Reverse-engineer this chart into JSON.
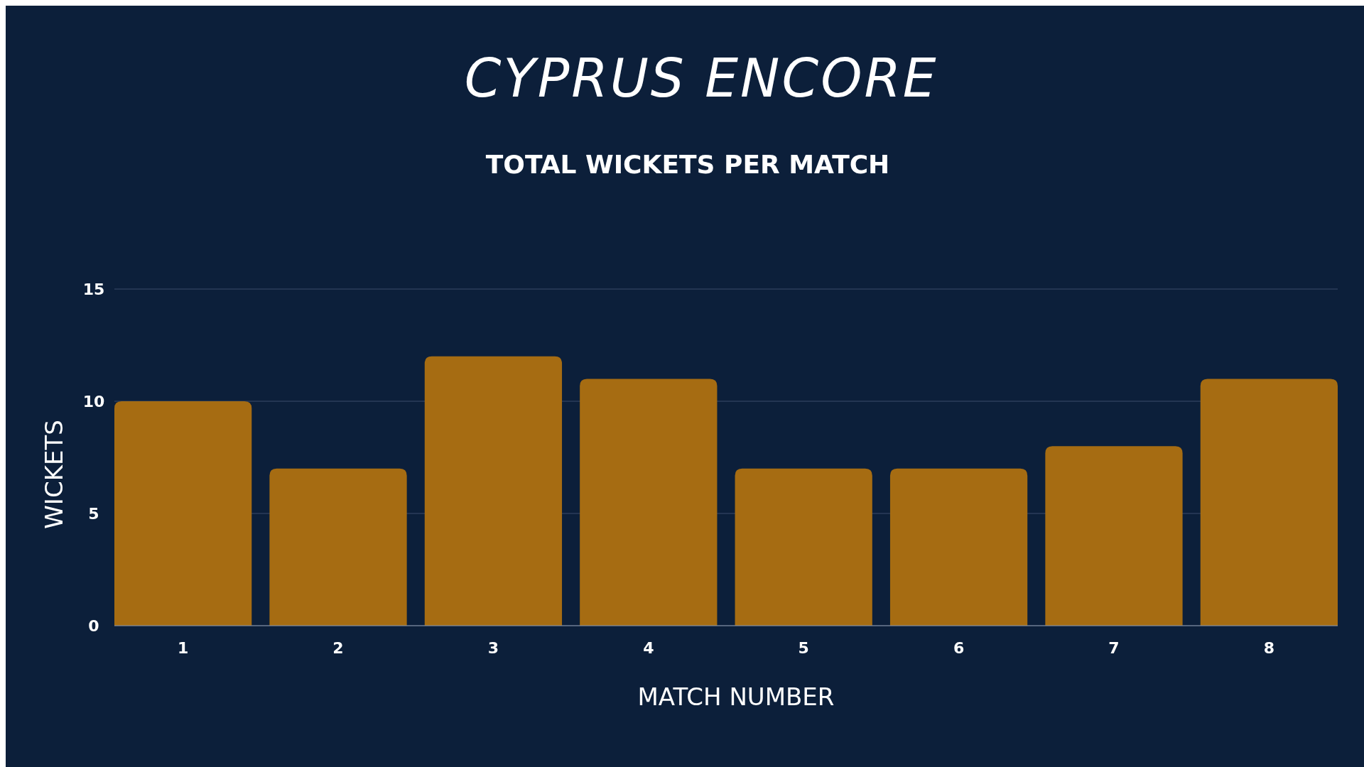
{
  "chart_data": {
    "type": "bar",
    "title": "CYPRUS ENCORE",
    "subtitle": "TOTAL WICKETS PER MATCH",
    "xlabel": "MATCH NUMBER",
    "ylabel": "WICKETS",
    "categories": [
      "1",
      "2",
      "3",
      "4",
      "5",
      "6",
      "7",
      "8"
    ],
    "values": [
      10,
      7,
      12,
      11,
      7,
      7,
      8,
      11
    ],
    "color": "#a66c12",
    "ylim": [
      0,
      15
    ],
    "yticks": [
      0,
      5,
      10,
      15
    ],
    "grid": "y"
  }
}
